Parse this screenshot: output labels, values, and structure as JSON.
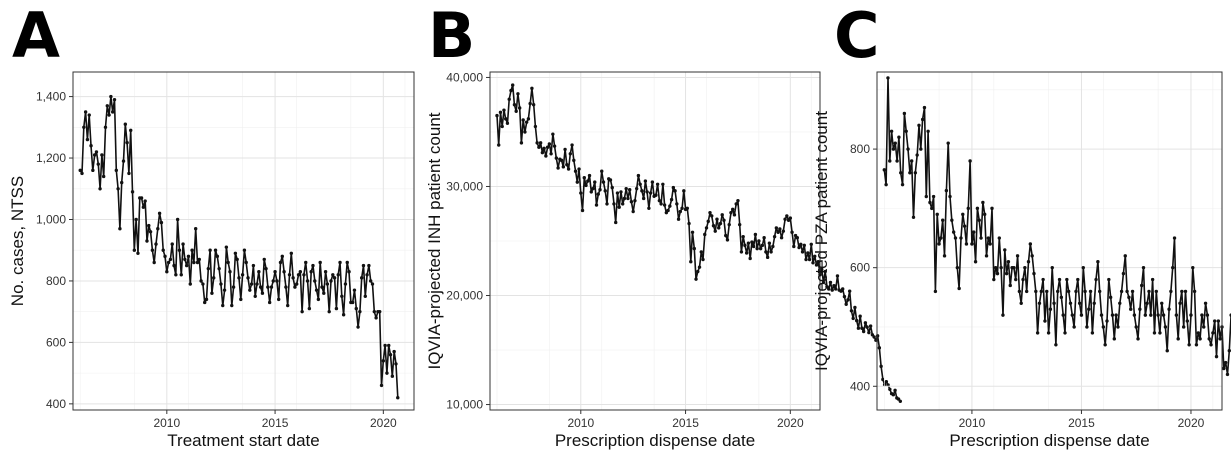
{
  "panels": [
    {
      "letter": "A"
    },
    {
      "letter": "B"
    },
    {
      "letter": "C"
    }
  ],
  "chart_data": [
    {
      "type": "line",
      "panel": "A",
      "xlabel": "Treatment start date",
      "ylabel": "No. cases, NTSS",
      "x_is_date": true,
      "xlim": [
        "2005-09",
        "2021-06"
      ],
      "ylim": [
        380,
        1480
      ],
      "xticks": [
        2010,
        2015,
        2020
      ],
      "yticks": [
        400,
        600,
        800,
        1000,
        1200,
        1400
      ],
      "ytick_labels": [
        "400",
        "600",
        "800",
        "1,000",
        "1,200",
        "1,400"
      ],
      "grid": true,
      "start": "2006-01",
      "step_months": 1,
      "values": [
        1160,
        1150,
        1300,
        1350,
        1260,
        1340,
        1240,
        1160,
        1210,
        1220,
        1180,
        1100,
        1210,
        1140,
        1300,
        1370,
        1340,
        1400,
        1350,
        1390,
        1160,
        1100,
        970,
        1120,
        1190,
        1310,
        1250,
        1150,
        1290,
        1090,
        900,
        1000,
        890,
        1070,
        1070,
        1040,
        1060,
        930,
        980,
        960,
        900,
        860,
        920,
        970,
        1020,
        990,
        900,
        880,
        830,
        860,
        870,
        920,
        850,
        820,
        1000,
        900,
        820,
        920,
        870,
        850,
        880,
        790,
        900,
        860,
        970,
        860,
        870,
        800,
        790,
        730,
        740,
        840,
        900,
        760,
        810,
        900,
        880,
        840,
        790,
        720,
        770,
        910,
        860,
        830,
        720,
        780,
        890,
        870,
        810,
        740,
        820,
        900,
        860,
        810,
        770,
        790,
        850,
        750,
        790,
        830,
        780,
        760,
        870,
        840,
        780,
        730,
        780,
        800,
        830,
        800,
        740,
        860,
        880,
        830,
        780,
        720,
        820,
        890,
        810,
        780,
        790,
        820,
        830,
        700,
        820,
        860,
        800,
        710,
        830,
        850,
        800,
        770,
        740,
        860,
        780,
        760,
        830,
        790,
        700,
        800,
        820,
        810,
        710,
        820,
        860,
        750,
        690,
        790,
        860,
        830,
        730,
        730,
        770,
        710,
        650,
        700,
        810,
        850,
        750,
        820,
        850,
        800,
        790,
        700,
        680,
        700,
        700,
        460,
        540,
        590,
        500,
        590,
        560,
        490,
        570,
        530,
        420
      ]
    },
    {
      "type": "line",
      "panel": "B",
      "xlabel": "Prescription dispense date",
      "ylabel": "IQVIA-projected INH patient count",
      "x_is_date": true,
      "xlim": [
        "2005-09",
        "2021-06"
      ],
      "ylim": [
        9500,
        40500
      ],
      "xticks": [
        2010,
        2015,
        2020
      ],
      "yticks": [
        10000,
        20000,
        30000,
        40000
      ],
      "ytick_labels": [
        "10,000",
        "20,000",
        "30,000",
        "40,000"
      ],
      "grid": true,
      "start": "2006-01",
      "step_months": 1,
      "values": [
        36500,
        33800,
        36800,
        35500,
        37000,
        36200,
        35800,
        38000,
        38800,
        39300,
        37500,
        36900,
        38500,
        37200,
        34000,
        36100,
        35000,
        35900,
        36200,
        37600,
        39000,
        37500,
        35500,
        34000,
        33600,
        34000,
        33100,
        33500,
        32800,
        33600,
        33900,
        33000,
        34800,
        33700,
        32600,
        31700,
        32500,
        32400,
        31800,
        33400,
        32000,
        31600,
        33000,
        33800,
        32400,
        31400,
        30400,
        31600,
        29400,
        27800,
        30800,
        30100,
        30500,
        31000,
        29500,
        29800,
        30400,
        28300,
        29300,
        29700,
        31400,
        30400,
        29600,
        28400,
        30700,
        30600,
        29900,
        28400,
        26700,
        29400,
        28100,
        29500,
        28400,
        28900,
        29800,
        28900,
        29700,
        28600,
        27700,
        28700,
        29800,
        31000,
        30200,
        29600,
        28900,
        30500,
        29500,
        28000,
        29400,
        30400,
        29100,
        29200,
        30200,
        28700,
        28400,
        30200,
        28300,
        27600,
        27800,
        28200,
        28800,
        29900,
        29600,
        28400,
        27000,
        27700,
        28000,
        29600,
        27900,
        28000,
        26600,
        23100,
        25800,
        24300,
        21500,
        22200,
        22600,
        24000,
        23300,
        25600,
        26200,
        26800,
        27600,
        27300,
        26400,
        25900,
        27000,
        26200,
        26600,
        27400,
        26900,
        25500,
        25100,
        26500,
        27600,
        27900,
        27400,
        28400,
        28700,
        26500,
        24000,
        25400,
        24600,
        23900,
        24800,
        23400,
        24900,
        24500,
        25600,
        24300,
        25000,
        24300,
        24600,
        25300,
        24000,
        23500,
        24800,
        24000,
        24500,
        25400,
        26200,
        25800,
        26100,
        25300,
        25900,
        27000,
        27300,
        26900,
        27100,
        25800,
        24500,
        25500,
        25300,
        24400,
        24700,
        24000,
        24600,
        23300,
        23900,
        23300,
        24700,
        23000,
        23600,
        22800,
        23100,
        21900,
        22400,
        21200,
        22200,
        20800,
        20600,
        21200,
        20500,
        20900,
        20600,
        21800,
        20500,
        20400,
        20600,
        19900,
        19200,
        19600,
        20400,
        18600,
        17900,
        18900,
        17700,
        17000,
        18100,
        17000,
        16700,
        17500,
        17100,
        16600,
        17200,
        16400,
        16200,
        15900,
        16300,
        15200,
        13500,
        12300,
        11800,
        12100,
        11800,
        11400,
        11000,
        10900,
        11300,
        10600,
        10500,
        10300
      ]
    },
    {
      "type": "line",
      "panel": "C",
      "xlabel": "Prescription dispense date",
      "ylabel": "IQVIA-projected PZA patient count",
      "x_is_date": true,
      "xlim": [
        "2005-09",
        "2021-06"
      ],
      "ylim": [
        360,
        930
      ],
      "xticks": [
        2010,
        2015,
        2020
      ],
      "yticks": [
        400,
        600,
        800
      ],
      "ytick_labels": [
        "400",
        "600",
        "800"
      ],
      "grid": true,
      "start": "2006-01",
      "step_months": 1,
      "values": [
        765,
        740,
        920,
        780,
        830,
        800,
        810,
        780,
        820,
        760,
        740,
        860,
        830,
        800,
        760,
        780,
        685,
        760,
        790,
        840,
        800,
        850,
        870,
        720,
        830,
        710,
        700,
        720,
        560,
        690,
        640,
        650,
        680,
        620,
        730,
        810,
        720,
        680,
        660,
        650,
        600,
        565,
        650,
        690,
        670,
        640,
        700,
        780,
        640,
        660,
        610,
        700,
        680,
        650,
        710,
        690,
        620,
        650,
        640,
        700,
        580,
        600,
        590,
        650,
        600,
        520,
        630,
        590,
        610,
        570,
        600,
        600,
        580,
        620,
        560,
        540,
        580,
        600,
        560,
        610,
        640,
        620,
        590,
        560,
        490,
        540,
        560,
        580,
        510,
        560,
        490,
        530,
        600,
        540,
        470,
        560,
        580,
        550,
        520,
        490,
        580,
        560,
        540,
        520,
        500,
        560,
        580,
        540,
        520,
        600,
        560,
        500,
        530,
        560,
        490,
        540,
        580,
        610,
        560,
        520,
        500,
        470,
        510,
        580,
        550,
        520,
        480,
        520,
        500,
        540,
        560,
        590,
        620,
        560,
        550,
        530,
        560,
        520,
        500,
        480,
        530,
        570,
        600,
        520,
        540,
        560,
        520,
        580,
        490,
        560,
        520,
        490,
        540,
        520,
        500,
        460,
        530,
        560,
        600,
        650,
        520,
        480,
        540,
        560,
        500,
        560,
        510,
        470,
        520,
        600,
        560,
        470,
        490,
        480,
        520,
        500,
        540,
        520,
        480,
        470,
        490,
        510,
        450,
        510,
        480,
        500,
        430,
        440,
        420,
        460,
        520,
        500,
        480,
        530,
        550,
        520,
        460,
        500,
        510,
        480,
        470,
        460,
        400,
        440,
        380,
        375,
        400,
        410,
        430,
        440,
        450,
        390,
        410,
        440,
        420,
        400,
        450,
        480,
        490,
        520,
        470,
        450
      ]
    }
  ]
}
